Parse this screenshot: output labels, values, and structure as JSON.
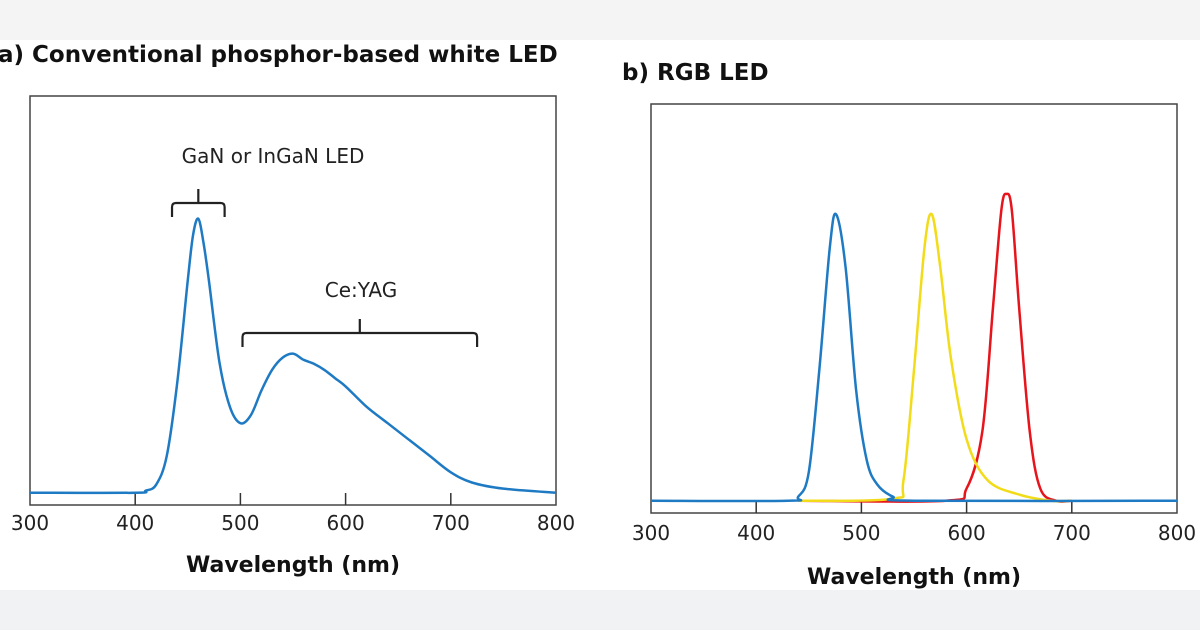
{
  "chart_data": [
    {
      "type": "line",
      "title": "a) Conventional phosphor-based white LED",
      "xlabel": "Wavelength (nm)",
      "ylabel": "",
      "xlim": [
        300,
        800
      ],
      "ylim": [
        0,
        1
      ],
      "xticks": [
        "300",
        "400",
        "500",
        "600",
        "700",
        "800"
      ],
      "grid": false,
      "annotations": [
        {
          "text": "GaN or InGaN LED",
          "range": [
            435,
            485
          ]
        },
        {
          "text": "Ce:YAG",
          "range": [
            502,
            725
          ]
        }
      ],
      "series": [
        {
          "color": "#1f7ac4",
          "x": [
            300,
            400,
            410,
            420,
            430,
            440,
            450,
            455,
            460,
            465,
            470,
            480,
            490,
            500,
            510,
            520,
            530,
            540,
            550,
            560,
            570,
            580,
            590,
            600,
            620,
            640,
            660,
            680,
            700,
            720,
            750,
            800
          ],
          "y": [
            0.03,
            0.03,
            0.035,
            0.05,
            0.12,
            0.3,
            0.55,
            0.66,
            0.7,
            0.64,
            0.55,
            0.35,
            0.24,
            0.2,
            0.22,
            0.28,
            0.33,
            0.36,
            0.37,
            0.355,
            0.345,
            0.33,
            0.31,
            0.29,
            0.24,
            0.2,
            0.16,
            0.12,
            0.08,
            0.055,
            0.04,
            0.03
          ]
        }
      ]
    },
    {
      "type": "line",
      "title": "b) RGB LED",
      "xlabel": "Wavelength (nm)",
      "ylabel": "",
      "xlim": [
        300,
        800
      ],
      "ylim": [
        0,
        1
      ],
      "xticks": [
        "300",
        "400",
        "500",
        "600",
        "700",
        "800"
      ],
      "grid": false,
      "series": [
        {
          "color": "#e8141c",
          "x": [
            440,
            580,
            600,
            615,
            625,
            633,
            638,
            643,
            650,
            660,
            670,
            685,
            700
          ],
          "y": [
            0.03,
            0.03,
            0.06,
            0.2,
            0.5,
            0.74,
            0.78,
            0.74,
            0.5,
            0.2,
            0.06,
            0.03,
            0.03
          ]
        },
        {
          "color": "#f2dc1a",
          "x": [
            440,
            530,
            540,
            550,
            560,
            567,
            575,
            585,
            600,
            620,
            650,
            680,
            700
          ],
          "y": [
            0.03,
            0.035,
            0.08,
            0.35,
            0.65,
            0.73,
            0.6,
            0.38,
            0.18,
            0.08,
            0.045,
            0.03,
            0.03
          ]
        },
        {
          "color": "#1f7ac4",
          "x": [
            300,
            430,
            440,
            450,
            460,
            470,
            476,
            485,
            495,
            505,
            515,
            530,
            550,
            800
          ],
          "y": [
            0.03,
            0.03,
            0.04,
            0.1,
            0.35,
            0.65,
            0.73,
            0.6,
            0.3,
            0.13,
            0.07,
            0.04,
            0.03,
            0.03
          ]
        }
      ]
    }
  ]
}
